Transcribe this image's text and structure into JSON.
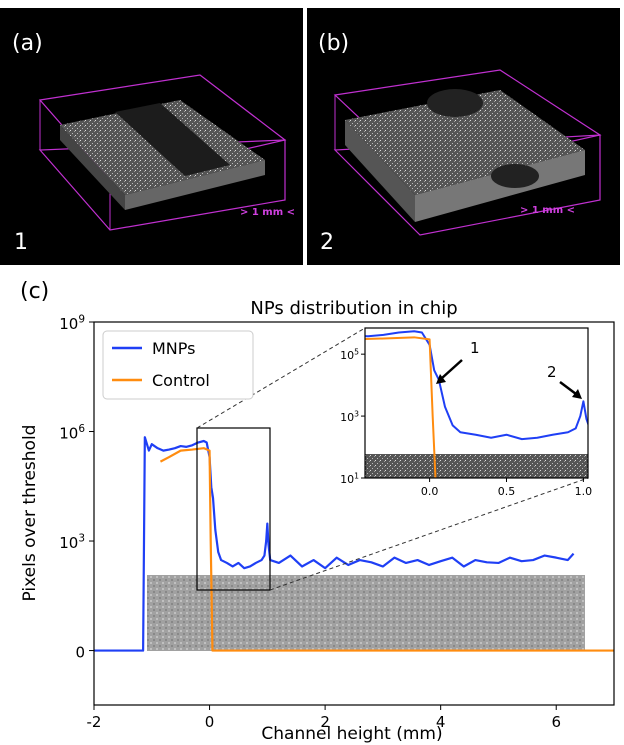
{
  "panels": [
    {
      "label": "(a)",
      "number": "1",
      "scale": "> 1 mm <"
    },
    {
      "label": "(b)",
      "number": "2",
      "scale": "> 1 mm <"
    }
  ],
  "chart_data": {
    "type": "line",
    "panel_label": "(c)",
    "title": "NPs distribution in chip",
    "xlabel": "Channel height (mm)",
    "ylabel": "Pixels over threshold",
    "yscale": "symlog",
    "xlim": [
      -2,
      7
    ],
    "xticks": [
      -2,
      0,
      2,
      4,
      6
    ],
    "ylim": [
      -30,
      1000000000
    ],
    "yticks": [
      0,
      {
        "value": 1000,
        "label": "10^3"
      },
      {
        "value": 1000000,
        "label": "10^6"
      },
      {
        "value": 1000000000,
        "label": "10^9"
      }
    ],
    "legend": "upper left",
    "series": [
      {
        "name": "MNPs",
        "color": "#1f3ff5",
        "x": [
          -2,
          -1.15,
          -1.12,
          -1.05,
          -1.0,
          -0.9,
          -0.8,
          -0.7,
          -0.6,
          -0.5,
          -0.4,
          -0.3,
          -0.2,
          -0.1,
          -0.05,
          0.0,
          0.03,
          0.06,
          0.1,
          0.15,
          0.2,
          0.3,
          0.4,
          0.5,
          0.6,
          0.7,
          0.8,
          0.9,
          0.95,
          0.98,
          1.0,
          1.02,
          1.05,
          1.2,
          1.4,
          1.6,
          1.8,
          2.0,
          2.2,
          2.4,
          2.6,
          2.8,
          3.0,
          3.2,
          3.4,
          3.6,
          3.8,
          4.0,
          4.2,
          4.4,
          4.6,
          4.8,
          5.0,
          5.2,
          5.4,
          5.6,
          5.8,
          6.0,
          6.2,
          6.3
        ],
        "values": [
          0,
          0,
          700000,
          300000,
          450000,
          350000,
          300000,
          320000,
          350000,
          400000,
          380000,
          420000,
          500000,
          550000,
          500000,
          200000,
          30000,
          15000,
          2000,
          500,
          300,
          250,
          200,
          250,
          180,
          200,
          250,
          300,
          400,
          1000,
          3000,
          800,
          300,
          250,
          400,
          200,
          300,
          180,
          350,
          220,
          300,
          260,
          200,
          350,
          250,
          300,
          220,
          280,
          350,
          200,
          300,
          260,
          250,
          350,
          280,
          300,
          400,
          350,
          300,
          450
        ]
      },
      {
        "name": "Control",
        "color": "#ff8c0f",
        "x": [
          -0.85,
          -0.7,
          -0.5,
          -0.3,
          -0.1,
          0.0,
          0.02,
          0.05,
          7
        ],
        "values": [
          150000,
          200000,
          300000,
          320000,
          350000,
          300000,
          1000,
          0,
          0
        ]
      }
    ],
    "inset": {
      "yscale": "log",
      "xlim": [
        -0.42,
        1.03
      ],
      "xticks": [
        {
          "value": 0,
          "label": "0.0"
        },
        {
          "value": 0.5,
          "label": "0.5"
        },
        {
          "value": 1,
          "label": "1.0"
        }
      ],
      "ylim": [
        10,
        700000
      ],
      "yticks": [
        {
          "value": 10,
          "label": "10^1"
        },
        {
          "value": 1000,
          "label": "10^3"
        },
        {
          "value": 100000,
          "label": "10^5"
        }
      ],
      "annotations": [
        "1",
        "2"
      ]
    }
  }
}
